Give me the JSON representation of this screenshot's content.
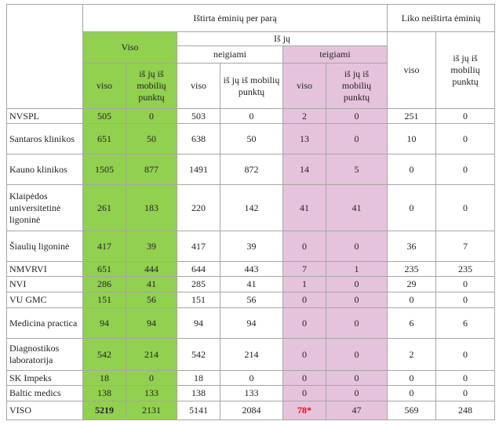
{
  "header": {
    "tested": "Ištirta ėminių per parą",
    "remaining": "Liko neištirta ėminių",
    "total": "Viso",
    "of_which": "Iš jų",
    "negative": "neigiami",
    "positive": "teigiami",
    "cols": [
      "viso",
      "iš jų iš mobilių punktų",
      "viso",
      "iš jų iš mobilių punktų",
      "viso",
      "iš jų iš mobilių punktų",
      "viso",
      "iš jų iš mobilių punktų"
    ]
  },
  "table": {
    "rows": [
      [
        "NVSPL",
        505,
        0,
        503,
        0,
        2,
        0,
        251,
        0
      ],
      [
        "Santaros klinikos",
        651,
        50,
        638,
        50,
        13,
        0,
        10,
        0
      ],
      [
        "Kauno klinikos",
        1505,
        877,
        1491,
        872,
        14,
        5,
        0,
        0
      ],
      [
        "Klaipėdos universitetinė ligoninė",
        261,
        183,
        220,
        142,
        41,
        41,
        0,
        0
      ],
      [
        "Šiaulių ligoninė",
        417,
        39,
        417,
        39,
        0,
        0,
        36,
        7
      ],
      [
        "NMVRVI",
        651,
        444,
        644,
        443,
        7,
        1,
        235,
        235
      ],
      [
        "NVI",
        286,
        41,
        285,
        41,
        1,
        0,
        29,
        0
      ],
      [
        "VU GMC",
        151,
        56,
        151,
        56,
        0,
        0,
        0,
        0
      ],
      [
        "Medicina practica",
        94,
        94,
        94,
        94,
        0,
        0,
        6,
        6
      ],
      [
        "Diagnostikos laboratorija",
        542,
        214,
        542,
        214,
        0,
        0,
        2,
        0
      ],
      [
        "SK Impeks",
        18,
        0,
        18,
        0,
        0,
        0,
        0,
        0
      ],
      [
        "Baltic medics",
        138,
        133,
        138,
        133,
        0,
        0,
        0,
        0
      ],
      [
        "VISO",
        5219,
        2131,
        5141,
        2084,
        "78*",
        47,
        569,
        248
      ]
    ]
  }
}
